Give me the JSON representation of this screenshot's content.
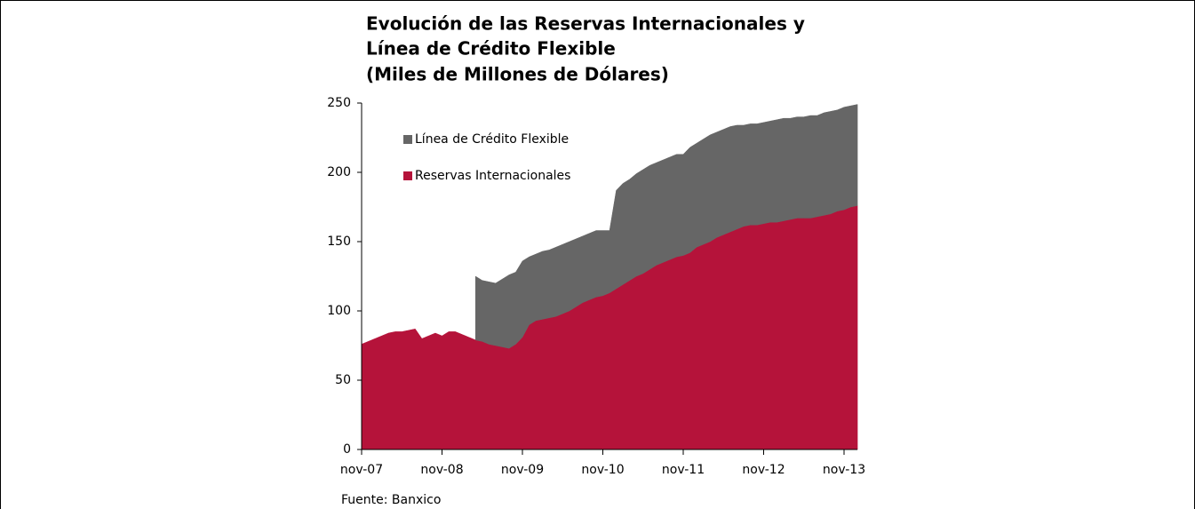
{
  "chart_data": {
    "type": "stacked_area",
    "title": [
      "Evolución de las Reservas Internacionales y",
      "Línea de Crédito Flexible",
      "(Miles de Millones de Dólares)"
    ],
    "source": "Fuente: Banxico",
    "categories": [
      "nov-07",
      null,
      null,
      null,
      null,
      null,
      null,
      null,
      null,
      null,
      null,
      null,
      "nov-08",
      null,
      null,
      null,
      null,
      null,
      null,
      null,
      null,
      null,
      null,
      null,
      "nov-09",
      null,
      null,
      null,
      null,
      null,
      null,
      null,
      null,
      null,
      null,
      null,
      "nov-10",
      null,
      null,
      null,
      null,
      null,
      null,
      null,
      null,
      null,
      null,
      null,
      "nov-11",
      null,
      null,
      null,
      null,
      null,
      null,
      null,
      null,
      null,
      null,
      null,
      "nov-12",
      null,
      null,
      null,
      null,
      null,
      null,
      null,
      null,
      null,
      null,
      null,
      "nov-13",
      null,
      null
    ],
    "series": [
      {
        "name": "Reservas Internacionales",
        "color": "#b5133a",
        "values": [
          76,
          78,
          80,
          82,
          84,
          85,
          85,
          86,
          87,
          80,
          82,
          84,
          82,
          85,
          85,
          83,
          81,
          79,
          78,
          76,
          75,
          74,
          73,
          76,
          81,
          90,
          93,
          94,
          95,
          96,
          98,
          100,
          103,
          106,
          108,
          110,
          111,
          113,
          116,
          119,
          122,
          125,
          127,
          130,
          133,
          135,
          137,
          139,
          140,
          142,
          146,
          148,
          150,
          153,
          155,
          157,
          159,
          161,
          162,
          162,
          163,
          164,
          164,
          165,
          166,
          167,
          167,
          167,
          168,
          169,
          170,
          172,
          173,
          175,
          176
        ]
      },
      {
        "name": "Línea de Crédito Flexible",
        "color": "#666666",
        "values": [
          null,
          null,
          null,
          null,
          null,
          null,
          null,
          null,
          null,
          null,
          null,
          null,
          null,
          null,
          null,
          null,
          null,
          46,
          44,
          45,
          45,
          49,
          53,
          52,
          55,
          49,
          48,
          49,
          49,
          50,
          50,
          50,
          49,
          48,
          48,
          48,
          47,
          45,
          71,
          73,
          73,
          74,
          75,
          75,
          74,
          74,
          74,
          74,
          73,
          76,
          75,
          76,
          77,
          76,
          76,
          76,
          75,
          73,
          73,
          73,
          73,
          73,
          74,
          74,
          73,
          73,
          73,
          74,
          73,
          74,
          74,
          73,
          74,
          73,
          73
        ]
      }
    ],
    "ylim": [
      0,
      250
    ],
    "yticks": [
      0,
      50,
      100,
      150,
      200,
      250
    ],
    "legend": "upper left"
  }
}
